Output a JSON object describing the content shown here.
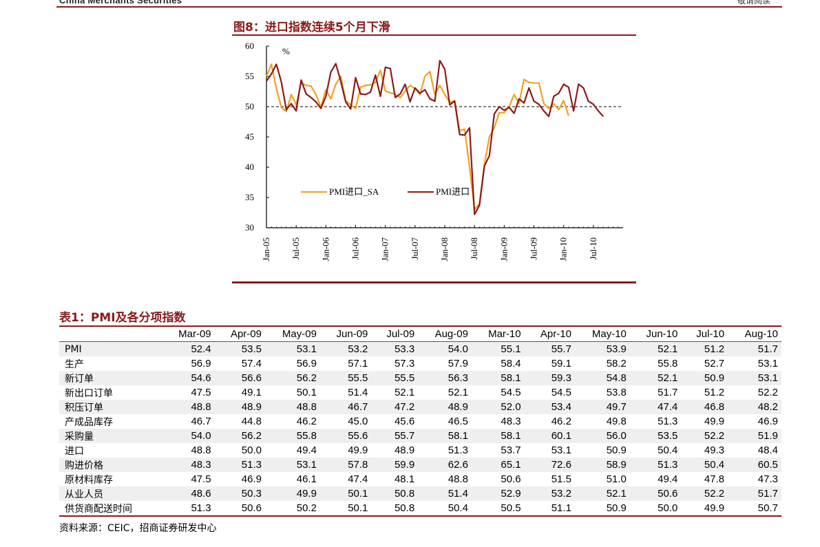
{
  "header": {
    "brand": "China Merchants Securities",
    "right": "敬请阅读"
  },
  "figure": {
    "title": "图8：进口指数连续5个月下滑"
  },
  "chart_data": {
    "type": "line",
    "ylim": [
      30,
      60
    ],
    "yticks": [
      30,
      35,
      40,
      45,
      50,
      55,
      60
    ],
    "yunit": "%",
    "xticks": [
      "Jan-05",
      "Jul-05",
      "Jan-06",
      "Jul-06",
      "Jan-07",
      "Jul-07",
      "Jan-08",
      "Jul-08",
      "Jan-09",
      "Jul-09",
      "Jan-10",
      "Jul-10"
    ],
    "x_start": "Jan-05",
    "reference_line": 50,
    "legend_position": "center",
    "series": [
      {
        "name": "PMI进口_SA",
        "color": "#f0a020",
        "values": [
          55.0,
          57.0,
          53.0,
          49.9,
          49.2,
          52.0,
          50.3,
          54.0,
          53.5,
          53.4,
          52.0,
          49.9,
          52.8,
          51.3,
          53.7,
          55.0,
          51.0,
          50.3,
          49.7,
          53.2,
          53.5,
          53.6,
          54.0,
          56.0,
          52.6,
          52.3,
          52.0,
          51.5,
          52.6,
          53.5,
          53.0,
          52.0,
          55.0,
          55.8,
          52.0,
          53.5,
          52.0,
          50.7,
          51.0,
          46.0,
          46.3,
          40.0,
          33.0,
          34.0,
          40.5,
          45.0,
          46.5,
          49.0,
          49.0,
          50.0,
          52.0,
          50.5,
          54.5,
          54.0,
          53.9,
          53.9,
          50.5,
          49.7,
          50.5,
          49.5,
          51.0,
          48.5
        ]
      },
      {
        "name": "PMI进口",
        "color": "#8b1a1a",
        "values": [
          54.2,
          55.4,
          57.0,
          54.1,
          49.5,
          50.5,
          49.3,
          54.4,
          52.1,
          51.5,
          50.8,
          49.7,
          51.7,
          55.7,
          57.1,
          54.2,
          50.8,
          49.6,
          54.8,
          52.1,
          52.0,
          52.4,
          55.2,
          51.7,
          56.5,
          56.3,
          51.5,
          52.1,
          53.7,
          50.8,
          53.1,
          52.2,
          52.8,
          51.3,
          50.9,
          57.6,
          56.2,
          50.3,
          50.9,
          45.4,
          45.3,
          46.5,
          32.2,
          33.7,
          40.2,
          41.9,
          48.8,
          50.0,
          49.4,
          49.9,
          48.9,
          51.3,
          50.6,
          53.1,
          50.9,
          50.4,
          49.3,
          48.4,
          51.7,
          52.2,
          53.7,
          53.2,
          49.3,
          53.7,
          53.1,
          50.9,
          50.4,
          49.3,
          48.4
        ]
      }
    ]
  },
  "table": {
    "title": "表1：PMI及各分项指数",
    "columns": [
      "Mar-09",
      "Apr-09",
      "May-09",
      "Jun-09",
      "Jul-09",
      "Aug-09",
      "Mar-10",
      "Apr-10",
      "May-10",
      "Jun-10",
      "Jul-10",
      "Aug-10"
    ],
    "rows": [
      {
        "label": "PMI",
        "values": [
          "52.4",
          "53.5",
          "53.1",
          "53.2",
          "53.3",
          "54.0",
          "55.1",
          "55.7",
          "53.9",
          "52.1",
          "51.2",
          "51.7"
        ]
      },
      {
        "label": "生产",
        "values": [
          "56.9",
          "57.4",
          "56.9",
          "57.1",
          "57.3",
          "57.9",
          "58.4",
          "59.1",
          "58.2",
          "55.8",
          "52.7",
          "53.1"
        ]
      },
      {
        "label": "新订单",
        "values": [
          "54.6",
          "56.6",
          "56.2",
          "55.5",
          "55.5",
          "56.3",
          "58.1",
          "59.3",
          "54.8",
          "52.1",
          "50.9",
          "53.1"
        ]
      },
      {
        "label": "新出口订单",
        "values": [
          "47.5",
          "49.1",
          "50.1",
          "51.4",
          "52.1",
          "52.1",
          "54.5",
          "54.5",
          "53.8",
          "51.7",
          "51.2",
          "52.2"
        ]
      },
      {
        "label": "积压订单",
        "values": [
          "48.8",
          "48.9",
          "48.8",
          "46.7",
          "47.2",
          "48.9",
          "52.0",
          "53.4",
          "49.7",
          "47.4",
          "46.8",
          "48.2"
        ]
      },
      {
        "label": "产成品库存",
        "values": [
          "46.7",
          "44.8",
          "46.2",
          "45.0",
          "45.6",
          "46.5",
          "48.3",
          "46.2",
          "49.8",
          "51.3",
          "49.9",
          "46.9"
        ]
      },
      {
        "label": "采购量",
        "values": [
          "54.0",
          "56.2",
          "55.8",
          "55.6",
          "55.7",
          "58.1",
          "58.1",
          "60.1",
          "56.0",
          "53.5",
          "52.2",
          "51.9"
        ]
      },
      {
        "label": "进口",
        "values": [
          "48.8",
          "50.0",
          "49.4",
          "49.9",
          "48.9",
          "51.3",
          "53.7",
          "53.1",
          "50.9",
          "50.4",
          "49.3",
          "48.4"
        ]
      },
      {
        "label": "购进价格",
        "values": [
          "48.3",
          "51.3",
          "53.1",
          "57.8",
          "59.9",
          "62.6",
          "65.1",
          "72.6",
          "58.9",
          "51.3",
          "50.4",
          "60.5"
        ]
      },
      {
        "label": "原材料库存",
        "values": [
          "47.5",
          "46.9",
          "46.1",
          "47.4",
          "48.1",
          "48.8",
          "50.6",
          "51.5",
          "51.0",
          "49.4",
          "47.8",
          "47.3"
        ]
      },
      {
        "label": "从业人员",
        "values": [
          "48.6",
          "50.3",
          "49.9",
          "50.1",
          "50.8",
          "51.4",
          "52.9",
          "53.2",
          "52.1",
          "50.6",
          "52.2",
          "51.7"
        ]
      },
      {
        "label": "供货商配送时间",
        "values": [
          "51.3",
          "50.6",
          "50.2",
          "50.1",
          "50.8",
          "50.4",
          "50.5",
          "51.1",
          "50.9",
          "50.0",
          "49.9",
          "50.7"
        ]
      }
    ]
  },
  "source": "资料来源：CEIC，招商证券研发中心"
}
